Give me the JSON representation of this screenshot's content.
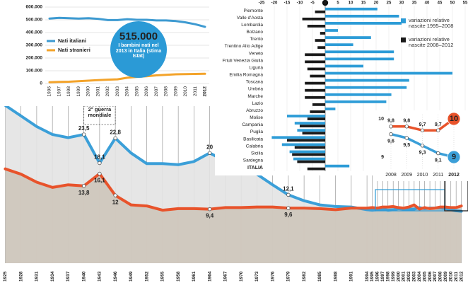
{
  "chart_data": [
    {
      "type": "line",
      "categories": [
        "1996",
        "1997",
        "1998",
        "1999",
        "2000",
        "2001",
        "2002",
        "2003",
        "2004",
        "2005",
        "2006",
        "2007",
        "2008",
        "2009",
        "2010",
        "2011",
        "2012"
      ],
      "series": [
        {
          "name": "Nati italiani",
          "color": "#3d9ad1",
          "values": [
            510000,
            515000,
            512000,
            510000,
            513000,
            508000,
            498000,
            498000,
            505000,
            500000,
            500000,
            495000,
            495000,
            490000,
            480000,
            465000,
            445000
          ]
        },
        {
          "name": "Nati stranieri",
          "color": "#f3a32a",
          "values": [
            10000,
            12000,
            14000,
            18000,
            22000,
            26000,
            30000,
            33000,
            45000,
            52000,
            57000,
            64000,
            68000,
            72000,
            74000,
            75000,
            76000
          ]
        }
      ],
      "ylim": [
        0,
        600000
      ],
      "yticks": [
        0,
        {
          "value": 100000,
          "label": "100.000"
        },
        {
          "value": 200000,
          "label": "200.000"
        },
        {
          "value": 300000,
          "label": "300.000"
        },
        {
          "value": 400000,
          "label": "400.000"
        },
        {
          "value": 500000,
          "label": "500.000"
        },
        {
          "value": 600000,
          "label": "600.000"
        }
      ],
      "grid": true,
      "legend": "left",
      "annotations": [
        "515.000",
        "I bambini nati nel 2013 in Italia (stima Istat)"
      ]
    },
    {
      "type": "bar",
      "orientation": "horizontal",
      "categories": [
        "Piemonte",
        "Valle d'Aosta",
        "Lombardia",
        "Bolzano",
        "Trento",
        "Trentino Alto Adige",
        "Veneto",
        "Friuli Venezia Giulia",
        "Liguria",
        "Emilia Romagna",
        "Toscana",
        "Umbria",
        "Marche",
        "Lazio",
        "Abruzzo",
        "Molise",
        "Campania",
        "Puglia",
        "Basilicata",
        "Calabria",
        "Sicilia",
        "Sardegna",
        "ITALIA"
      ],
      "series": [
        {
          "name": "variazioni relative nascite 1995–2008",
          "color": "#2d9cd7",
          "values": [
            20.5,
            29,
            30,
            5,
            18,
            11,
            27,
            27,
            15,
            50,
            33,
            32,
            26,
            24,
            4,
            -15,
            -12,
            -11,
            -21,
            -17,
            -14,
            -12.5,
            9.5
          ]
        },
        {
          "name": "variazioni relative nascite 2008–2012",
          "color": "#1a1a1a",
          "values": [
            -4,
            -9,
            -7,
            -2,
            -4,
            -3,
            -8,
            -8,
            -7,
            -6,
            -8,
            -8,
            -8,
            -5,
            -6,
            -7,
            -10,
            -9,
            -15,
            -12,
            -13,
            -11,
            -7
          ]
        }
      ],
      "xlim": [
        -25,
        55
      ],
      "xticks": [
        -25,
        -20,
        -15,
        -10,
        -5,
        0,
        5,
        10,
        15,
        20,
        25,
        30,
        35,
        40,
        45,
        50,
        55
      ],
      "grid": true,
      "legend": "right"
    },
    {
      "type": "line",
      "categories": [
        "2008",
        "2009",
        "2010",
        "2011",
        "2012"
      ],
      "series": [
        {
          "color": "#e8532b",
          "values": [
            9.8,
            9.8,
            9.7,
            9.7,
            10
          ],
          "value_labels": [
            "9,8",
            "9,8",
            "9,7",
            "9,7",
            "10"
          ]
        },
        {
          "color": "#3b9fd8",
          "values": [
            9.6,
            9.5,
            9.3,
            9.1,
            9
          ],
          "value_labels": [
            "9,6",
            "9,5",
            "9,3",
            "9,1",
            "9"
          ]
        }
      ],
      "ylim": [
        9,
        10
      ],
      "yticks": [
        9,
        10
      ],
      "grid": false
    },
    {
      "type": "line",
      "x": [
        1925,
        1928,
        1931,
        1934,
        1937,
        1940,
        1943,
        1946,
        1949,
        1952,
        1955,
        1958,
        1961,
        1964,
        1967,
        1970,
        1973,
        1976,
        1979,
        1982,
        1985,
        1988,
        1991,
        1994,
        1995,
        1996,
        1997,
        1998,
        1999,
        2000,
        2001,
        2002,
        2003,
        2004,
        2005,
        2006,
        2007,
        2008,
        2009,
        2010,
        2011,
        2012
      ],
      "series": [
        {
          "color": "#3b9fd8",
          "values": [
            29,
            27,
            25,
            23.5,
            22.9,
            23.5,
            18.1,
            22.8,
            20,
            18,
            18,
            17.8,
            18.4,
            20,
            18.5,
            16.8,
            16,
            14,
            12.1,
            11,
            10.2,
            9.9,
            9.8,
            9.3,
            9.2,
            9.3,
            9.4,
            9.2,
            9.3,
            9.5,
            9.4,
            9.4,
            9.4,
            9.7,
            9.5,
            9.6,
            9.6,
            9.6,
            9.5,
            9.3,
            9.1,
            9
          ],
          "value_labels": [
            null,
            null,
            null,
            null,
            null,
            "23,5",
            "18,1",
            "22,8",
            null,
            null,
            null,
            null,
            null,
            "20",
            null,
            null,
            null,
            null,
            "12,1",
            null,
            null,
            null,
            null,
            null,
            null,
            null,
            null,
            null,
            null,
            null,
            null,
            null,
            null,
            null,
            null,
            null,
            null,
            null,
            null,
            null,
            null,
            null
          ]
        },
        {
          "color": "#e8532b",
          "values": [
            17,
            16,
            14.5,
            13.5,
            14,
            13.8,
            16.1,
            12,
            10.2,
            10,
            9.2,
            9.5,
            9.5,
            9.4,
            9.7,
            9.7,
            9.8,
            9.8,
            9.6,
            9.6,
            9.5,
            9.3,
            9.6,
            9.6,
            9.7,
            9.6,
            9.8,
            9.8,
            9.9,
            9.7,
            9.6,
            9.8,
            10.2,
            9.4,
            9.7,
            9.5,
            9.6,
            9.8,
            9.8,
            9.7,
            9.7,
            10
          ],
          "value_labels": [
            null,
            null,
            null,
            null,
            null,
            "13,8",
            "16,1",
            "12",
            null,
            null,
            null,
            null,
            null,
            "9,4",
            null,
            null,
            null,
            null,
            "9,6",
            null,
            null,
            null,
            null,
            null,
            null,
            null,
            null,
            null,
            null,
            null,
            null,
            null,
            null,
            null,
            null,
            null,
            null,
            null,
            null,
            null,
            null,
            null
          ]
        }
      ],
      "xlim": [
        1924,
        2013
      ],
      "ylim": [
        0,
        35
      ],
      "xticks": [
        1925,
        1928,
        1931,
        1934,
        1937,
        1940,
        1943,
        1946,
        1949,
        1952,
        1955,
        1958,
        1961,
        1964,
        1967,
        1970,
        1973,
        1976,
        1979,
        1982,
        1985,
        1988,
        1991,
        1994,
        1995,
        1996,
        1997,
        1998,
        1999,
        2000,
        2001,
        2002,
        2003,
        2004,
        2005,
        2006,
        2007,
        2008,
        2009,
        2010,
        2011,
        2012
      ],
      "grid": true,
      "annotation": "2° guerra mondiale"
    }
  ]
}
